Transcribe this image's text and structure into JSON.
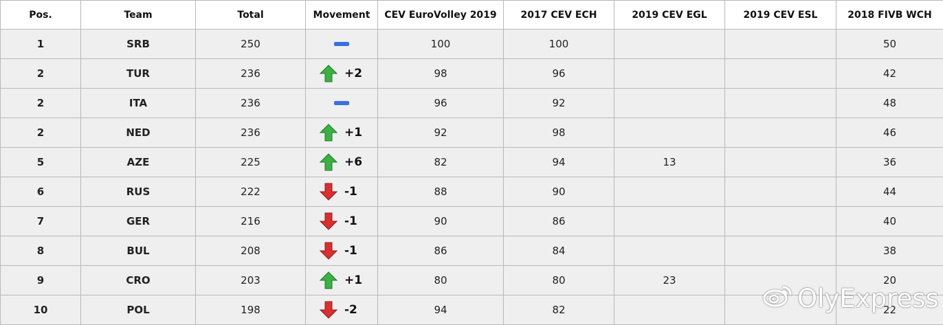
{
  "table": {
    "headers": [
      "Pos.",
      "Team",
      "Total",
      "Movement",
      "CEV EuroVolley 2019",
      "2017 CEV ECH",
      "2019 CEV EGL",
      "2019 CEV ESL",
      "2018 FIVB WCH"
    ],
    "rows": [
      {
        "pos": "1",
        "team": "SRB",
        "total": "250",
        "movement": {
          "direction": "same",
          "icon": "no-change-dash-icon",
          "value": ""
        },
        "eurovolley_2019": "100",
        "ech_2017": "100",
        "egl_2019": "",
        "esl_2019": "",
        "wch_2018": "50"
      },
      {
        "pos": "2",
        "team": "TUR",
        "total": "236",
        "movement": {
          "direction": "up",
          "icon": "arrow-up-icon",
          "value": "+2"
        },
        "eurovolley_2019": "98",
        "ech_2017": "96",
        "egl_2019": "",
        "esl_2019": "",
        "wch_2018": "42"
      },
      {
        "pos": "2",
        "team": "ITA",
        "total": "236",
        "movement": {
          "direction": "same",
          "icon": "no-change-dash-icon",
          "value": ""
        },
        "eurovolley_2019": "96",
        "ech_2017": "92",
        "egl_2019": "",
        "esl_2019": "",
        "wch_2018": "48"
      },
      {
        "pos": "2",
        "team": "NED",
        "total": "236",
        "movement": {
          "direction": "up",
          "icon": "arrow-up-icon",
          "value": "+1"
        },
        "eurovolley_2019": "92",
        "ech_2017": "98",
        "egl_2019": "",
        "esl_2019": "",
        "wch_2018": "46"
      },
      {
        "pos": "5",
        "team": "AZE",
        "total": "225",
        "movement": {
          "direction": "up",
          "icon": "arrow-up-icon",
          "value": "+6"
        },
        "eurovolley_2019": "82",
        "ech_2017": "94",
        "egl_2019": "13",
        "esl_2019": "",
        "wch_2018": "36"
      },
      {
        "pos": "6",
        "team": "RUS",
        "total": "222",
        "movement": {
          "direction": "down",
          "icon": "arrow-down-icon",
          "value": "-1"
        },
        "eurovolley_2019": "88",
        "ech_2017": "90",
        "egl_2019": "",
        "esl_2019": "",
        "wch_2018": "44"
      },
      {
        "pos": "7",
        "team": "GER",
        "total": "216",
        "movement": {
          "direction": "down",
          "icon": "arrow-down-icon",
          "value": "-1"
        },
        "eurovolley_2019": "90",
        "ech_2017": "86",
        "egl_2019": "",
        "esl_2019": "",
        "wch_2018": "40"
      },
      {
        "pos": "8",
        "team": "BUL",
        "total": "208",
        "movement": {
          "direction": "down",
          "icon": "arrow-down-icon",
          "value": "-1"
        },
        "eurovolley_2019": "86",
        "ech_2017": "84",
        "egl_2019": "",
        "esl_2019": "",
        "wch_2018": "38"
      },
      {
        "pos": "9",
        "team": "CRO",
        "total": "203",
        "movement": {
          "direction": "up",
          "icon": "arrow-up-icon",
          "value": "+1"
        },
        "eurovolley_2019": "80",
        "ech_2017": "80",
        "egl_2019": "23",
        "esl_2019": "",
        "wch_2018": "20"
      },
      {
        "pos": "10",
        "team": "POL",
        "total": "198",
        "movement": {
          "direction": "down",
          "icon": "arrow-down-icon",
          "value": "-2"
        },
        "eurovolley_2019": "94",
        "ech_2017": "82",
        "egl_2019": "",
        "esl_2019": "",
        "wch_2018": "22"
      }
    ]
  },
  "watermark": {
    "text": "OlyExpress",
    "icon": "weibo-logo-icon"
  },
  "colors": {
    "up_arrow": "#3cb043",
    "down_arrow": "#d93030",
    "no_change": "#3a6fe0",
    "cell_bg": "#efefef",
    "header_bg": "#ffffff",
    "border": "#b8b8b8"
  }
}
